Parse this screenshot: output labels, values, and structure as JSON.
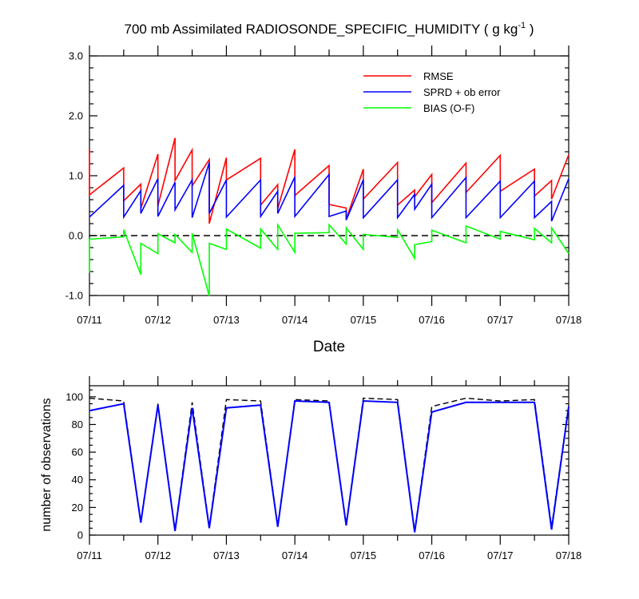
{
  "chart_data": [
    {
      "type": "line",
      "title_main": "700 mb Assimilated RADIOSONDE_SPECIFIC_HUMIDITY ( g kg",
      "title_sup": "-1",
      "title_end": " )",
      "xlabel": "Date",
      "ylabel": "",
      "x_unit": "days since 07/11",
      "xlim": [
        0,
        7
      ],
      "ylim": [
        -1.0,
        3.0
      ],
      "y_ticks": [
        -1.0,
        0.0,
        1.0,
        2.0,
        3.0
      ],
      "y_tick_labels": [
        "-1.0",
        "0.0",
        "1.0",
        "2.0",
        "3.0"
      ],
      "x_ticks": [
        0,
        1,
        2,
        3,
        4,
        5,
        6,
        7
      ],
      "x_tick_labels": [
        "07/11",
        "07/12",
        "07/13",
        "07/14",
        "07/15",
        "07/16",
        "07/17",
        "07/18"
      ],
      "zero_line": {
        "y": 0.0,
        "style": "dashed",
        "color": "#000000"
      },
      "legend": {
        "placement": "top-right"
      },
      "series": [
        {
          "name": "RMSE",
          "color": "#ff0000",
          "points": [
            [
              0.0,
              1.45
            ],
            [
              0.0,
              0.68
            ],
            [
              0.5,
              1.13
            ],
            [
              0.5,
              0.58
            ],
            [
              0.75,
              0.86
            ],
            [
              0.75,
              0.45
            ],
            [
              1.0,
              1.36
            ],
            [
              1.0,
              0.5
            ],
            [
              1.25,
              1.63
            ],
            [
              1.25,
              0.92
            ],
            [
              1.5,
              1.43
            ],
            [
              1.5,
              0.83
            ],
            [
              1.75,
              1.27
            ],
            [
              1.75,
              0.2
            ],
            [
              2.0,
              1.3
            ],
            [
              2.0,
              0.93
            ],
            [
              2.5,
              1.29
            ],
            [
              2.5,
              0.51
            ],
            [
              2.75,
              0.85
            ],
            [
              2.75,
              0.45
            ],
            [
              3.0,
              1.44
            ],
            [
              3.0,
              0.67
            ],
            [
              3.5,
              1.17
            ],
            [
              3.5,
              0.52
            ],
            [
              3.75,
              0.46
            ],
            [
              3.75,
              0.27
            ],
            [
              4.0,
              1.11
            ],
            [
              4.0,
              0.61
            ],
            [
              4.5,
              1.22
            ],
            [
              4.5,
              0.51
            ],
            [
              4.75,
              0.76
            ],
            [
              4.75,
              0.65
            ],
            [
              5.0,
              1.02
            ],
            [
              5.0,
              0.55
            ],
            [
              5.5,
              1.21
            ],
            [
              5.5,
              0.72
            ],
            [
              6.0,
              1.34
            ],
            [
              6.0,
              0.74
            ],
            [
              6.5,
              1.11
            ],
            [
              6.5,
              0.66
            ],
            [
              6.75,
              0.92
            ],
            [
              6.75,
              0.61
            ],
            [
              7.0,
              1.35
            ]
          ]
        },
        {
          "name": "SPRD + ob error",
          "color": "#0000ff",
          "points": [
            [
              0.0,
              0.31
            ],
            [
              0.5,
              0.84
            ],
            [
              0.5,
              0.31
            ],
            [
              0.75,
              0.75
            ],
            [
              0.75,
              0.37
            ],
            [
              1.0,
              0.95
            ],
            [
              1.0,
              0.32
            ],
            [
              1.25,
              0.89
            ],
            [
              1.25,
              0.43
            ],
            [
              1.5,
              0.93
            ],
            [
              1.5,
              0.3
            ],
            [
              1.75,
              1.22
            ],
            [
              1.75,
              0.37
            ],
            [
              2.0,
              0.93
            ],
            [
              2.0,
              0.31
            ],
            [
              2.5,
              0.93
            ],
            [
              2.5,
              0.32
            ],
            [
              2.75,
              0.74
            ],
            [
              2.75,
              0.37
            ],
            [
              3.0,
              0.98
            ],
            [
              3.0,
              0.32
            ],
            [
              3.5,
              1.02
            ],
            [
              3.5,
              0.32
            ],
            [
              3.75,
              0.41
            ],
            [
              3.75,
              0.26
            ],
            [
              4.0,
              0.93
            ],
            [
              4.0,
              0.3
            ],
            [
              4.5,
              0.93
            ],
            [
              4.5,
              0.3
            ],
            [
              4.75,
              0.69
            ],
            [
              4.75,
              0.44
            ],
            [
              5.0,
              0.86
            ],
            [
              5.0,
              0.3
            ],
            [
              5.5,
              0.97
            ],
            [
              5.5,
              0.3
            ],
            [
              6.0,
              0.91
            ],
            [
              6.0,
              0.3
            ],
            [
              6.5,
              0.91
            ],
            [
              6.5,
              0.3
            ],
            [
              6.75,
              0.57
            ],
            [
              6.75,
              0.24
            ],
            [
              7.0,
              0.95
            ]
          ]
        },
        {
          "name": "BIAS (O-F)",
          "color": "#00ff00",
          "points": [
            [
              0.0,
              -0.62
            ],
            [
              0.0,
              -0.06
            ],
            [
              0.5,
              -0.02
            ],
            [
              0.5,
              0.1
            ],
            [
              0.75,
              -0.65
            ],
            [
              0.75,
              -0.13
            ],
            [
              1.0,
              -0.3
            ],
            [
              1.0,
              0.03
            ],
            [
              1.25,
              -0.12
            ],
            [
              1.25,
              0.02
            ],
            [
              1.5,
              -0.28
            ],
            [
              1.5,
              0.04
            ],
            [
              1.75,
              -1.01
            ],
            [
              1.75,
              -0.13
            ],
            [
              2.0,
              -0.23
            ],
            [
              2.0,
              0.11
            ],
            [
              2.5,
              -0.21
            ],
            [
              2.5,
              0.11
            ],
            [
              2.75,
              -0.23
            ],
            [
              2.75,
              0.18
            ],
            [
              3.0,
              -0.28
            ],
            [
              3.0,
              0.04
            ],
            [
              3.5,
              0.05
            ],
            [
              3.5,
              0.18
            ],
            [
              3.75,
              -0.14
            ],
            [
              3.75,
              0.13
            ],
            [
              4.0,
              -0.23
            ],
            [
              4.0,
              0.02
            ],
            [
              4.5,
              -0.03
            ],
            [
              4.5,
              0.1
            ],
            [
              4.75,
              -0.38
            ],
            [
              4.75,
              -0.15
            ],
            [
              5.0,
              -0.1
            ],
            [
              5.0,
              0.09
            ],
            [
              5.5,
              -0.12
            ],
            [
              5.5,
              0.16
            ],
            [
              6.0,
              -0.06
            ],
            [
              6.0,
              0.07
            ],
            [
              6.5,
              -0.07
            ],
            [
              6.5,
              0.12
            ],
            [
              6.75,
              -0.12
            ],
            [
              6.75,
              0.13
            ],
            [
              7.0,
              -0.3
            ]
          ]
        }
      ]
    },
    {
      "type": "line",
      "title": "",
      "xlabel": "",
      "ylabel": "number of observations",
      "x_unit": "days since 07/11",
      "xlim": [
        0,
        7
      ],
      "ylim": [
        0,
        108
      ],
      "y_ticks": [
        0,
        20,
        40,
        60,
        80,
        100
      ],
      "y_tick_labels": [
        "0",
        "20",
        "40",
        "60",
        "80",
        "100"
      ],
      "x_ticks": [
        0,
        1,
        2,
        3,
        4,
        5,
        6,
        7
      ],
      "x_tick_labels": [
        "07/11",
        "07/12",
        "07/13",
        "07/14",
        "07/15",
        "07/16",
        "07/17",
        "07/18"
      ],
      "series": [
        {
          "color": "#000000",
          "style": "dashed",
          "points": [
            [
              0.0,
              99
            ],
            [
              0.5,
              97
            ],
            [
              0.75,
              10
            ],
            [
              1.0,
              95
            ],
            [
              1.25,
              4
            ],
            [
              1.5,
              96
            ],
            [
              1.75,
              6
            ],
            [
              2.0,
              98
            ],
            [
              2.5,
              97
            ],
            [
              2.75,
              7
            ],
            [
              3.0,
              98
            ],
            [
              3.5,
              97
            ],
            [
              3.75,
              8
            ],
            [
              4.0,
              99
            ],
            [
              4.5,
              98
            ],
            [
              4.75,
              3
            ],
            [
              5.0,
              93
            ],
            [
              5.5,
              99
            ],
            [
              6.0,
              97
            ],
            [
              6.5,
              98
            ],
            [
              6.75,
              6
            ],
            [
              7.0,
              94
            ]
          ]
        },
        {
          "color": "#0000ff",
          "style": "solid",
          "points": [
            [
              0.0,
              90
            ],
            [
              0.5,
              95
            ],
            [
              0.75,
              9
            ],
            [
              1.0,
              94
            ],
            [
              1.25,
              3
            ],
            [
              1.5,
              92
            ],
            [
              1.75,
              5
            ],
            [
              2.0,
              92
            ],
            [
              2.5,
              94
            ],
            [
              2.75,
              6
            ],
            [
              3.0,
              97
            ],
            [
              3.5,
              96
            ],
            [
              3.75,
              7
            ],
            [
              4.0,
              97
            ],
            [
              4.5,
              96
            ],
            [
              4.75,
              2
            ],
            [
              5.0,
              89
            ],
            [
              5.5,
              96
            ],
            [
              6.0,
              96
            ],
            [
              6.5,
              96
            ],
            [
              6.75,
              4
            ],
            [
              7.0,
              93
            ]
          ]
        }
      ]
    }
  ]
}
